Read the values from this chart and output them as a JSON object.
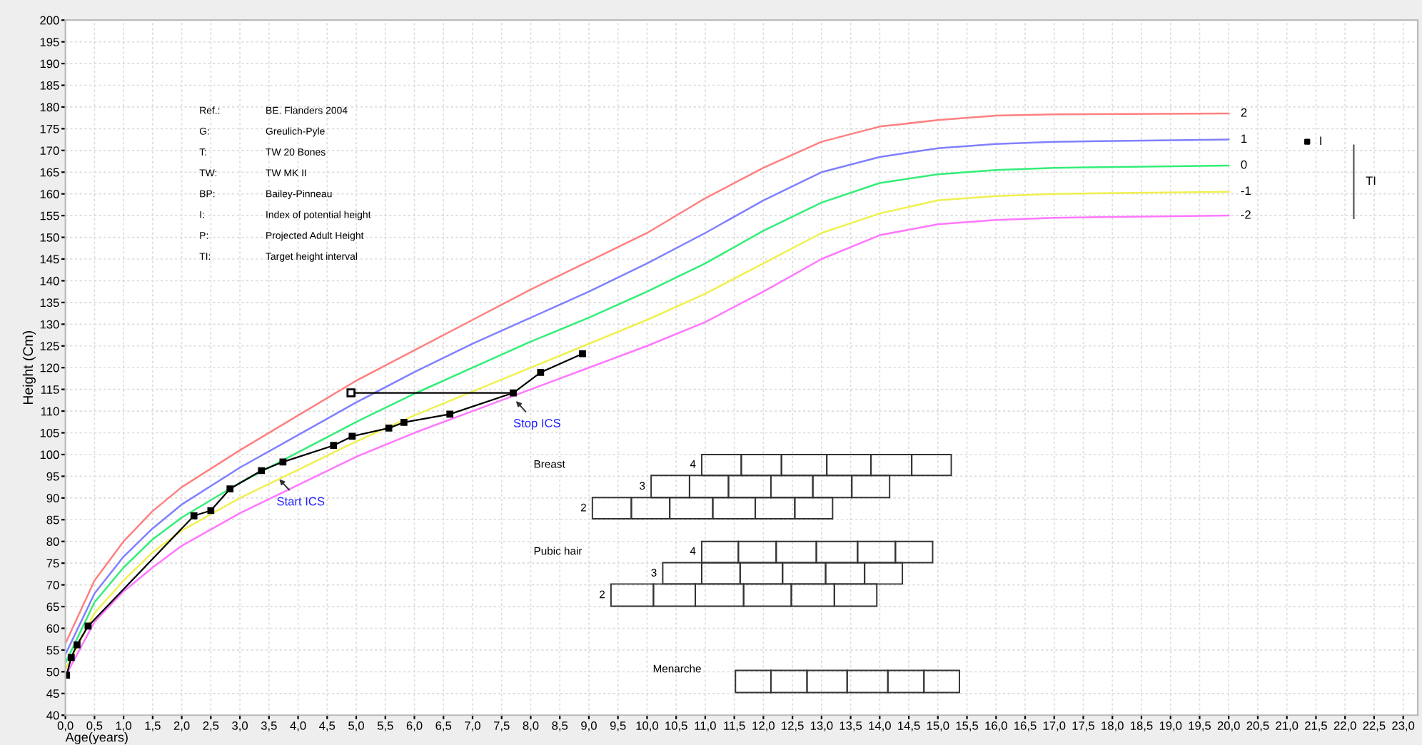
{
  "chart_data": {
    "type": "line",
    "xlabel": "Age(years)",
    "ylabel": "Height (Cm)",
    "xlim": [
      0,
      23.25
    ],
    "ylim": [
      40,
      200
    ],
    "xticks": [
      {
        "value": 0,
        "label": "0,0"
      },
      {
        "value": 0.5,
        "label": "0,5"
      },
      {
        "value": 1,
        "label": "1,0"
      },
      {
        "value": 1.5,
        "label": "1,5"
      },
      {
        "value": 2,
        "label": "2,0"
      },
      {
        "value": 2.5,
        "label": "2,5"
      },
      {
        "value": 3,
        "label": "3,0"
      },
      {
        "value": 3.5,
        "label": "3,5"
      },
      {
        "value": 4,
        "label": "4,0"
      },
      {
        "value": 4.5,
        "label": "4,5"
      },
      {
        "value": 5,
        "label": "5,0"
      },
      {
        "value": 5.5,
        "label": "5,5"
      },
      {
        "value": 6,
        "label": "6,0"
      },
      {
        "value": 6.5,
        "label": "6,5"
      },
      {
        "value": 7,
        "label": "7,0"
      },
      {
        "value": 7.5,
        "label": "7,5"
      },
      {
        "value": 8,
        "label": "8,0"
      },
      {
        "value": 8.5,
        "label": "8,5"
      },
      {
        "value": 9,
        "label": "9,0"
      },
      {
        "value": 9.5,
        "label": "9,5"
      },
      {
        "value": 10,
        "label": "10,0"
      },
      {
        "value": 10.5,
        "label": "10,5"
      },
      {
        "value": 11,
        "label": "11,0"
      },
      {
        "value": 11.5,
        "label": "11,5"
      },
      {
        "value": 12,
        "label": "12,0"
      },
      {
        "value": 12.5,
        "label": "12,5"
      },
      {
        "value": 13,
        "label": "13,0"
      },
      {
        "value": 13.5,
        "label": "13,5"
      },
      {
        "value": 14,
        "label": "14,0"
      },
      {
        "value": 14.5,
        "label": "14,5"
      },
      {
        "value": 15,
        "label": "15,0"
      },
      {
        "value": 15.5,
        "label": "15,5"
      },
      {
        "value": 16,
        "label": "16,0"
      },
      {
        "value": 16.5,
        "label": "16,5"
      },
      {
        "value": 17,
        "label": "17,0"
      },
      {
        "value": 17.5,
        "label": "17,5"
      },
      {
        "value": 18,
        "label": "18,0"
      },
      {
        "value": 18.5,
        "label": "18,5"
      },
      {
        "value": 19,
        "label": "19,0"
      },
      {
        "value": 19.5,
        "label": "19,5"
      },
      {
        "value": 20,
        "label": "20,0"
      },
      {
        "value": 20.5,
        "label": "20,5"
      },
      {
        "value": 21,
        "label": "21,0"
      },
      {
        "value": 21.5,
        "label": "21,5"
      },
      {
        "value": 22,
        "label": "22,0"
      },
      {
        "value": 22.5,
        "label": "22,5"
      },
      {
        "value": 23,
        "label": "23,0"
      }
    ],
    "yticks": [
      40,
      45,
      50,
      55,
      60,
      65,
      70,
      75,
      80,
      85,
      90,
      95,
      100,
      105,
      110,
      115,
      120,
      125,
      130,
      135,
      140,
      145,
      150,
      155,
      160,
      165,
      170,
      175,
      180,
      185,
      190,
      195,
      200
    ],
    "grid": true,
    "legend": false,
    "series": [
      {
        "name": "2",
        "color": "#ff8080",
        "x": [
          0,
          0.5,
          1,
          1.5,
          2,
          3,
          4,
          5,
          6,
          7,
          8,
          9,
          10,
          11,
          12,
          13,
          14,
          15,
          16,
          17,
          20
        ],
        "values": [
          56.5,
          71,
          80,
          87,
          92.5,
          101,
          109,
          117,
          124,
          131,
          138,
          144.5,
          151,
          159,
          166,
          172,
          175.5,
          177,
          178,
          178.3,
          178.5
        ]
      },
      {
        "name": "1",
        "color": "#8080ff",
        "x": [
          0,
          0.5,
          1,
          1.5,
          2,
          3,
          4,
          5,
          6,
          7,
          8,
          9,
          10,
          11,
          12,
          13,
          14,
          15,
          16,
          17,
          20
        ],
        "values": [
          54,
          68,
          76.5,
          83,
          88.5,
          97,
          104.5,
          112,
          119,
          125.5,
          131.5,
          137.5,
          144,
          151,
          158.5,
          165,
          168.5,
          170.5,
          171.5,
          172,
          172.5
        ]
      },
      {
        "name": "0",
        "color": "#33ee77",
        "x": [
          0,
          0.5,
          1,
          1.5,
          2,
          3,
          4,
          5,
          6,
          7,
          8,
          9,
          10,
          11,
          12,
          13,
          14,
          15,
          16,
          17,
          20
        ],
        "values": [
          52,
          66,
          74,
          80.5,
          85.5,
          93.5,
          100.5,
          107.5,
          114,
          120,
          126,
          131.5,
          137.5,
          144,
          151.5,
          158,
          162.5,
          164.5,
          165.5,
          166,
          166.5
        ]
      },
      {
        "name": "-1",
        "color": "#f0f050",
        "x": [
          0,
          0.5,
          1,
          1.5,
          2,
          3,
          4,
          5,
          6,
          7,
          8,
          9,
          10,
          11,
          12,
          13,
          14,
          15,
          16,
          17,
          20
        ],
        "values": [
          50.5,
          63.5,
          71,
          77.5,
          82.5,
          90,
          96.5,
          103,
          109,
          114.5,
          120,
          125.5,
          131,
          137,
          144,
          151,
          155.5,
          158.5,
          159.5,
          160,
          160.5
        ]
      },
      {
        "name": "-2",
        "color": "#ff77ff",
        "x": [
          0,
          0.5,
          1,
          1.5,
          2,
          3,
          4,
          5,
          6,
          7,
          8,
          9,
          10,
          11,
          12,
          13,
          14,
          15,
          16,
          17,
          20
        ],
        "values": [
          49,
          61.5,
          68.5,
          74,
          79,
          86.5,
          93,
          99.5,
          105,
          110,
          115,
          120,
          125,
          130.5,
          137.5,
          145,
          150.5,
          153,
          154,
          154.5,
          155
        ]
      },
      {
        "color": "#000000",
        "marker": "square",
        "x": [
          0.02,
          0.1,
          0.2,
          0.39,
          2.21,
          2.5,
          2.83,
          3.37,
          3.74,
          4.61,
          4.93,
          5.56,
          5.82,
          6.61,
          7.7,
          8.17,
          8.89
        ],
        "values": [
          49.2,
          53.3,
          56.2,
          60.5,
          85.9,
          87.1,
          92.1,
          96.3,
          98.3,
          102.1,
          104.2,
          106.1,
          107.4,
          109.3,
          114.2,
          118.9,
          123.2
        ]
      },
      {
        "color": "#000000",
        "marker": "square",
        "x": [
          4.91,
          7.7
        ],
        "values": [
          114.2,
          114.2
        ]
      },
      {
        "name": "I",
        "type": "scatter",
        "color": "#000000",
        "marker": "square",
        "x": [
          21.35
        ],
        "values": [
          172
        ]
      },
      {
        "name": "TI",
        "color": "#555555",
        "x": [
          22.15,
          22.15
        ],
        "values": [
          171.2,
          154.4
        ]
      }
    ],
    "annotations": [
      "Ref.:",
      "BE. Flanders 2004",
      "G:",
      "Greulich-Pyle",
      "T:",
      "TW 20 Bones",
      "TW:",
      "TW MK II",
      "BP:",
      "Bailey-Pinneau",
      "I:",
      "Index of potential height",
      "P:",
      "Projected Adult Height",
      "TI:",
      "Target height interval",
      "Breast",
      "4",
      "3",
      "2",
      "Pubic hair",
      "4",
      "3",
      "2",
      "Menarche",
      {
        "text": "Start ICS",
        "x": 3.63,
        "y": 95
      },
      {
        "text": "Stop ICS",
        "x": 7.7,
        "y": 113
      }
    ]
  }
}
